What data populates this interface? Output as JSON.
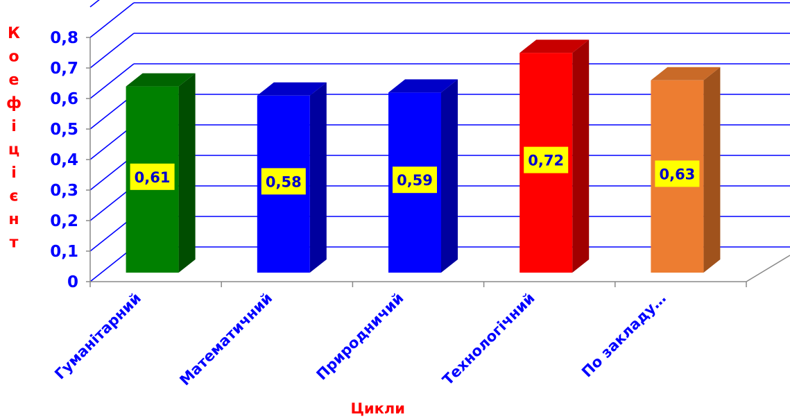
{
  "chart_data": {
    "type": "bar",
    "categories": [
      "Гуманітарний",
      "Математичний",
      "Природничий",
      "Технологічний",
      "По закладу…"
    ],
    "values": [
      0.61,
      0.58,
      0.59,
      0.72,
      0.63
    ],
    "value_labels": [
      "0,61",
      "0,58",
      "0,59",
      "0,72",
      "0,63"
    ],
    "ylim": [
      0,
      0.8
    ],
    "y_ticks": [
      0,
      0.1,
      0.2,
      0.3,
      0.4,
      0.5,
      0.6,
      0.7,
      0.8
    ],
    "y_tick_labels": [
      "0",
      "0,1",
      "0,2",
      "0,3",
      "0,4",
      "0,5",
      "0,6",
      "0,7",
      "0,8"
    ],
    "xlabel": "Цикли",
    "ylabel": "Коефіцієнт",
    "grid": true,
    "bar_colors": [
      "#008000",
      "#0000ff",
      "#0000ff",
      "#ff0000",
      "#ed7d31"
    ],
    "bar_side_colors": [
      "#004d00",
      "#00009e",
      "#00009e",
      "#a00000",
      "#a0521c"
    ],
    "bar_top_colors": [
      "#006400",
      "#0000c8",
      "#0000c8",
      "#c80000",
      "#c96a28"
    ],
    "label_bg_color": "#ffff00",
    "label_text_color": "#0000cc",
    "axis_text_color": "#0000ff",
    "axis_title_color": "#ff0000",
    "grid_color": "#0000ff"
  }
}
